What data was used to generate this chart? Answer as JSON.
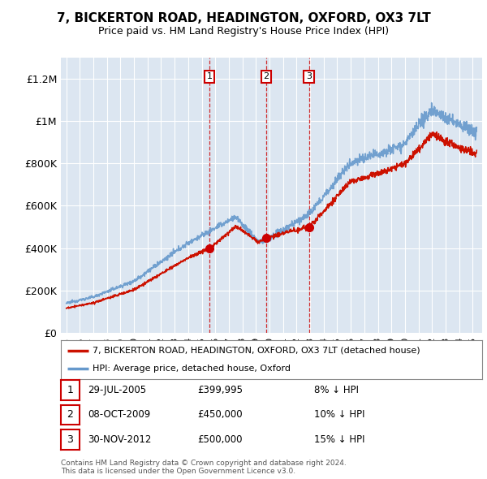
{
  "title1": "7, BICKERTON ROAD, HEADINGTON, OXFORD, OX3 7LT",
  "title2": "Price paid vs. HM Land Registry's House Price Index (HPI)",
  "plot_bg": "#dce6f1",
  "legend_label_red": "7, BICKERTON ROAD, HEADINGTON, OXFORD, OX3 7LT (detached house)",
  "legend_label_blue": "HPI: Average price, detached house, Oxford",
  "footer": "Contains HM Land Registry data © Crown copyright and database right 2024.\nThis data is licensed under the Open Government Licence v3.0.",
  "sales": [
    {
      "num": 1,
      "date": "29-JUL-2005",
      "price": "£399,995",
      "pct": "8% ↓ HPI",
      "year": 2005.57
    },
    {
      "num": 2,
      "date": "08-OCT-2009",
      "price": "£450,000",
      "pct": "10% ↓ HPI",
      "year": 2009.77
    },
    {
      "num": 3,
      "date": "30-NOV-2012",
      "price": "£500,000",
      "pct": "15% ↓ HPI",
      "year": 2012.92
    }
  ],
  "sale_prices": [
    399995,
    450000,
    500000
  ],
  "ylim": [
    0,
    1300000
  ],
  "yticks": [
    0,
    200000,
    400000,
    600000,
    800000,
    1000000,
    1200000
  ],
  "ytick_labels": [
    "£0",
    "£200K",
    "£400K",
    "£600K",
    "£800K",
    "£1M",
    "£1.2M"
  ],
  "color_red": "#cc0000",
  "color_blue": "#6699cc",
  "line_color_red": "#cc2200",
  "line_color_blue": "#5588bb"
}
